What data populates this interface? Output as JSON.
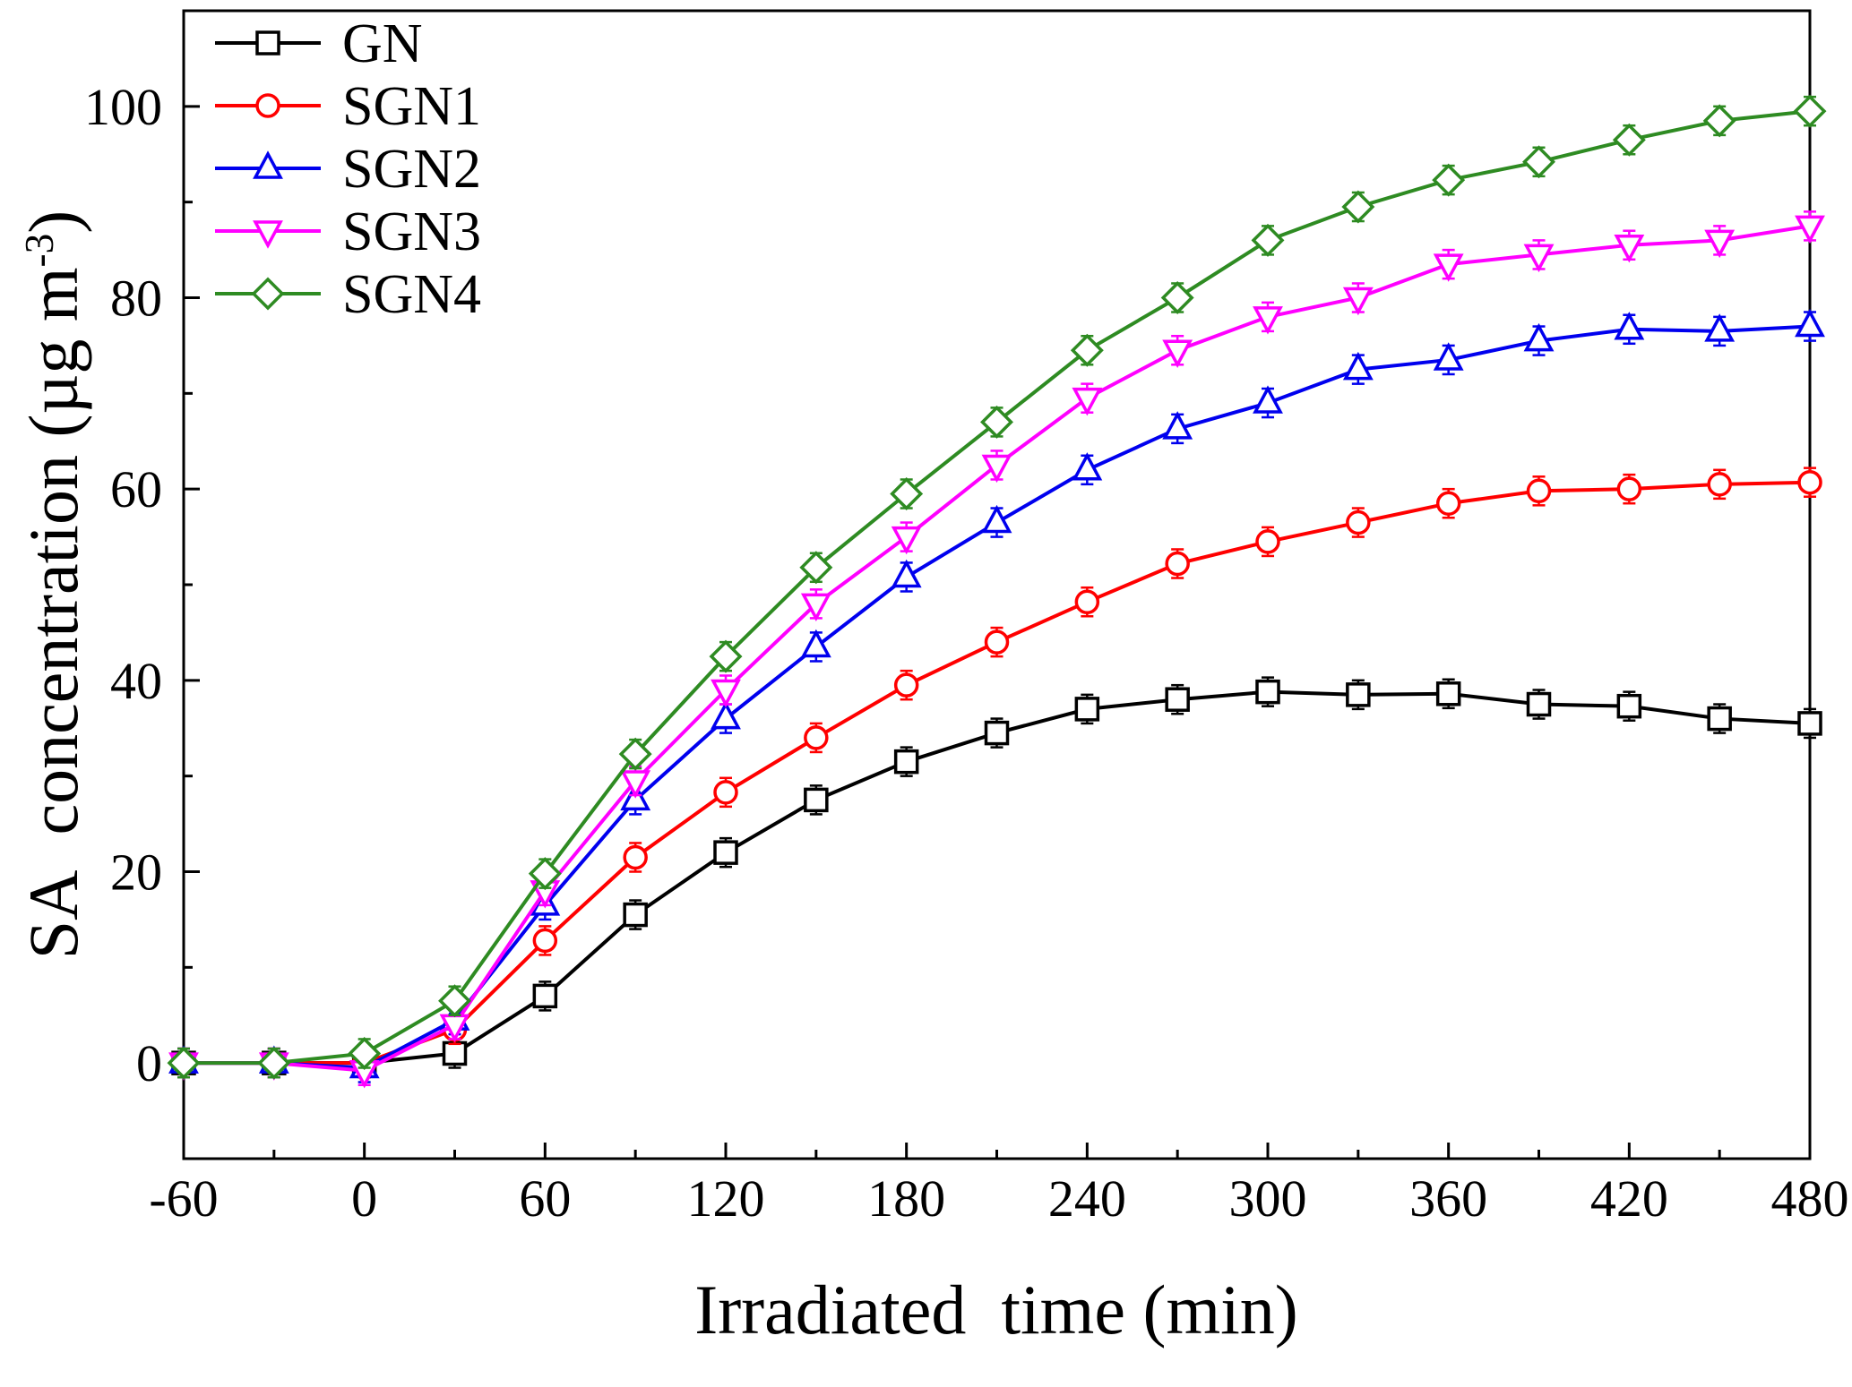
{
  "chart_data": {
    "type": "line",
    "title": "",
    "xlabel": "Irradiated  time (min)",
    "ylabel_main": "SA  concentration (µg m",
    "ylabel_sup": "-3",
    "ylabel_close": ")",
    "xlim": [
      -60,
      480
    ],
    "ylim": [
      -10,
      110
    ],
    "xticks": [
      -60,
      0,
      60,
      120,
      180,
      240,
      300,
      360,
      420,
      480
    ],
    "yticks": [
      0,
      20,
      40,
      60,
      80,
      100
    ],
    "x_minor_step": 30,
    "y_minor_step": 10,
    "grid": false,
    "legend_position": "top-left",
    "error_bar": 1.5,
    "x": [
      -60,
      -30,
      0,
      30,
      60,
      90,
      120,
      150,
      180,
      210,
      240,
      270,
      300,
      330,
      360,
      390,
      420,
      450,
      480
    ],
    "series": [
      {
        "name": "GN",
        "color": "#000000",
        "marker": "square",
        "values": [
          0,
          0,
          0,
          1.0,
          7.0,
          15.5,
          22.0,
          27.5,
          31.5,
          34.5,
          37.0,
          38.0,
          38.8,
          38.5,
          38.6,
          37.5,
          37.3,
          36.0,
          35.5
        ]
      },
      {
        "name": "SGN1",
        "color": "#ff0000",
        "marker": "circle",
        "values": [
          0,
          0,
          0,
          3.5,
          12.8,
          21.5,
          28.3,
          34.0,
          39.5,
          44.0,
          48.2,
          52.2,
          54.5,
          56.5,
          58.5,
          59.8,
          60.0,
          60.5,
          60.7
        ]
      },
      {
        "name": "SGN2",
        "color": "#0000ee",
        "marker": "triangle-up",
        "values": [
          0,
          0,
          -0.5,
          4.5,
          16.5,
          27.5,
          36.0,
          43.5,
          50.8,
          56.5,
          62.0,
          66.3,
          69.0,
          72.5,
          73.5,
          75.5,
          76.7,
          76.5,
          77.0
        ]
      },
      {
        "name": "SGN3",
        "color": "#ff00ff",
        "marker": "triangle-down",
        "values": [
          0,
          0,
          -0.8,
          4.0,
          18.0,
          29.5,
          39.0,
          48.0,
          55.0,
          62.5,
          69.5,
          74.5,
          78.0,
          80.0,
          83.5,
          84.5,
          85.5,
          86.0,
          87.5
        ]
      },
      {
        "name": "SGN4",
        "color": "#2e8b22",
        "marker": "diamond",
        "values": [
          0,
          0,
          1.0,
          6.5,
          19.8,
          32.3,
          42.5,
          51.8,
          59.5,
          67.0,
          74.5,
          80.0,
          86.0,
          89.5,
          92.3,
          94.2,
          96.5,
          98.5,
          99.5
        ]
      }
    ]
  }
}
